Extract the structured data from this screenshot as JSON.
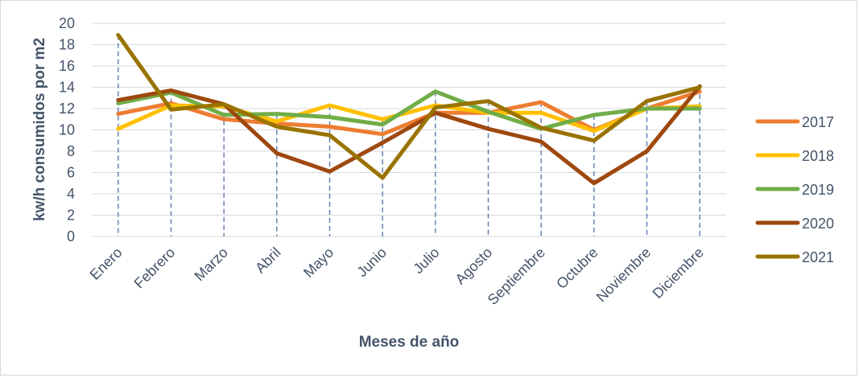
{
  "chart_data": {
    "type": "line",
    "title": "",
    "xlabel": "Meses de año",
    "ylabel": "kw/h consumidos por m2",
    "ylim": [
      0,
      20
    ],
    "yticks": [
      0,
      2,
      4,
      6,
      8,
      10,
      12,
      14,
      16,
      18,
      20
    ],
    "grid": "horizontal",
    "legend_position": "right",
    "categories": [
      "Enero",
      "Febrero",
      "Marzo",
      "Abril",
      "Mayo",
      "Junio",
      "Julio",
      "Agosto",
      "Septiembre",
      "Octubre",
      "Noviembre",
      "Diciembre"
    ],
    "series": [
      {
        "name": "2017",
        "color": "#ed7d31",
        "values": [
          11.5,
          12.5,
          11.0,
          10.6,
          10.3,
          9.6,
          11.6,
          11.6,
          12.6,
          10.0,
          12.0,
          13.6
        ]
      },
      {
        "name": "2018",
        "color": "#ffc000",
        "values": [
          10.1,
          12.3,
          12.2,
          10.8,
          12.3,
          11.0,
          12.3,
          11.6,
          11.6,
          9.9,
          12.0,
          12.2
        ]
      },
      {
        "name": "2019",
        "color": "#70ad47",
        "values": [
          12.5,
          13.5,
          11.4,
          11.5,
          11.2,
          10.5,
          13.6,
          11.7,
          10.1,
          11.4,
          12.0,
          12.0
        ]
      },
      {
        "name": "2020",
        "color": "#9e480e",
        "values": [
          12.8,
          13.7,
          12.4,
          7.8,
          6.1,
          8.8,
          11.6,
          10.1,
          8.9,
          5.0,
          8.0,
          14.1
        ]
      },
      {
        "name": "2021",
        "color": "#997300",
        "values": [
          18.9,
          11.9,
          12.4,
          10.3,
          9.5,
          5.5,
          12.1,
          12.7,
          10.2,
          9.0,
          12.7,
          14.0
        ]
      }
    ]
  }
}
